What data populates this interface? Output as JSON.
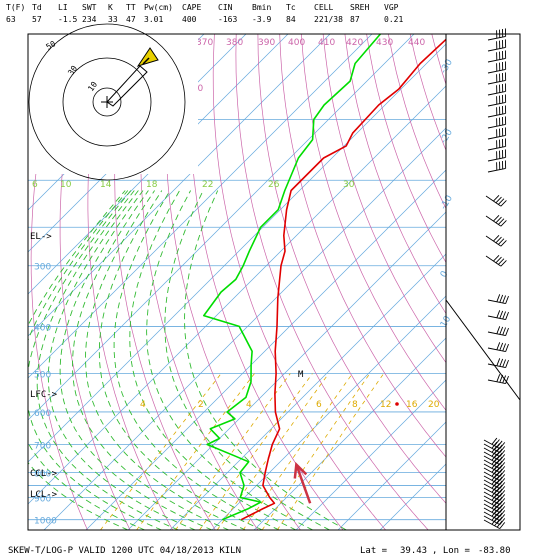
{
  "header": {
    "labels": [
      "T(F)",
      "Td",
      "LI",
      "SWT",
      "K",
      "TT",
      "Pw(cm)",
      "CAPE",
      "CIN",
      "Bmin",
      "Tc",
      "CELL",
      "SREH",
      "VGP"
    ],
    "values": [
      "63",
      "57",
      "-1.5",
      "234",
      "33",
      "47",
      "3.01",
      "400",
      "-163",
      "-3.9",
      "84",
      "221/38",
      "87",
      "0.21"
    ]
  },
  "footer": {
    "title": "SKEW-T/LOG-P VALID 1200 UTC 04/18/2013   KILN",
    "lat_label": "Lat =",
    "lat": "39.43",
    "lon_label": ", Lon =",
    "lon": "-83.80"
  },
  "level_markers": {
    "el": "EL->",
    "lfc": "LFC->",
    "ccl": "CCL->",
    "lcl": "LCL->",
    "m": "M"
  },
  "colors": {
    "temperature": "#e00000",
    "dewpoint": "#00dd00",
    "theta": "#cc66aa",
    "isotherm": "#66aadd",
    "isobar": "#66aadd",
    "moist_adiabat": "#33bb33",
    "mixing_ratio": "#ddaa00",
    "wind_barb": "#000000",
    "hodograph_marker": "#e8d000",
    "storm_arrow": "#cc3344"
  },
  "hodograph": {
    "ring_labels": [
      "50",
      "30",
      "10"
    ]
  },
  "chart_data": {
    "type": "line",
    "title": "SKEW-T/LOG-P VALID 1200 UTC 04/18/2013 KILN",
    "x_unit": "temperature (C)",
    "y_unit": "pressure (mb)",
    "pressure_ticks": [
      "300",
      "400",
      "500",
      "600",
      "700",
      "800",
      "900",
      "1000"
    ],
    "isotherm_labels": [
      "-30",
      "-20",
      "-10",
      "0",
      "10"
    ],
    "theta_labels": [
      "370",
      "380",
      "390",
      "400",
      "410",
      "420",
      "430",
      "440",
      "360"
    ],
    "moist_labels": [
      "6",
      "10",
      "14",
      "18",
      "22",
      "26",
      "30"
    ],
    "mixing_labels": [
      "4",
      "2",
      "4",
      "6",
      "8",
      "12",
      "16",
      "20"
    ],
    "series": [
      {
        "key": "temperature",
        "points": [
          [
            1000,
            14.5
          ],
          [
            950,
            17.0
          ],
          [
            925,
            18.5
          ],
          [
            900,
            16.0
          ],
          [
            850,
            11.5
          ],
          [
            800,
            9.0
          ],
          [
            750,
            6.5
          ],
          [
            700,
            4.0
          ],
          [
            650,
            2.0
          ],
          [
            600,
            -3.0
          ],
          [
            550,
            -7.5
          ],
          [
            500,
            -12.0
          ],
          [
            450,
            -17.5
          ],
          [
            400,
            -23.0
          ],
          [
            350,
            -29.5
          ],
          [
            300,
            -36.5
          ],
          [
            280,
            -39.0
          ],
          [
            260,
            -43.0
          ],
          [
            230,
            -48.5
          ],
          [
            210,
            -52.0
          ],
          [
            180,
            -52.0
          ],
          [
            170,
            -49.5
          ],
          [
            160,
            -51.0
          ],
          [
            140,
            -51.5
          ],
          [
            130,
            -50.5
          ],
          [
            115,
            -51.5
          ],
          [
            100,
            -51.0
          ]
        ]
      },
      {
        "key": "dewpoint",
        "points": [
          [
            1000,
            10.0
          ],
          [
            950,
            13.5
          ],
          [
            920,
            15.0
          ],
          [
            900,
            9.0
          ],
          [
            850,
            7.0
          ],
          [
            800,
            3.0
          ],
          [
            760,
            2.5
          ],
          [
            740,
            -2.0
          ],
          [
            700,
            -11.5
          ],
          [
            680,
            -10.0
          ],
          [
            650,
            -14.5
          ],
          [
            620,
            -11.0
          ],
          [
            600,
            -14.5
          ],
          [
            560,
            -13.5
          ],
          [
            520,
            -16.0
          ],
          [
            480,
            -20.0
          ],
          [
            450,
            -23.0
          ],
          [
            400,
            -32.0
          ],
          [
            380,
            -43.0
          ],
          [
            340,
            -44.5
          ],
          [
            320,
            -44.0
          ],
          [
            300,
            -45.5
          ],
          [
            280,
            -47.5
          ],
          [
            250,
            -50.5
          ],
          [
            230,
            -50.5
          ],
          [
            210,
            -53.5
          ],
          [
            180,
            -58.0
          ],
          [
            165,
            -59.0
          ],
          [
            150,
            -63.5
          ],
          [
            140,
            -64.5
          ],
          [
            125,
            -64.0
          ],
          [
            115,
            -67.0
          ],
          [
            100,
            -68.0
          ]
        ]
      }
    ],
    "storm_motion_arrow": [
      [
        925,
        27.0
      ],
      [
        770,
        14.5
      ]
    ]
  }
}
